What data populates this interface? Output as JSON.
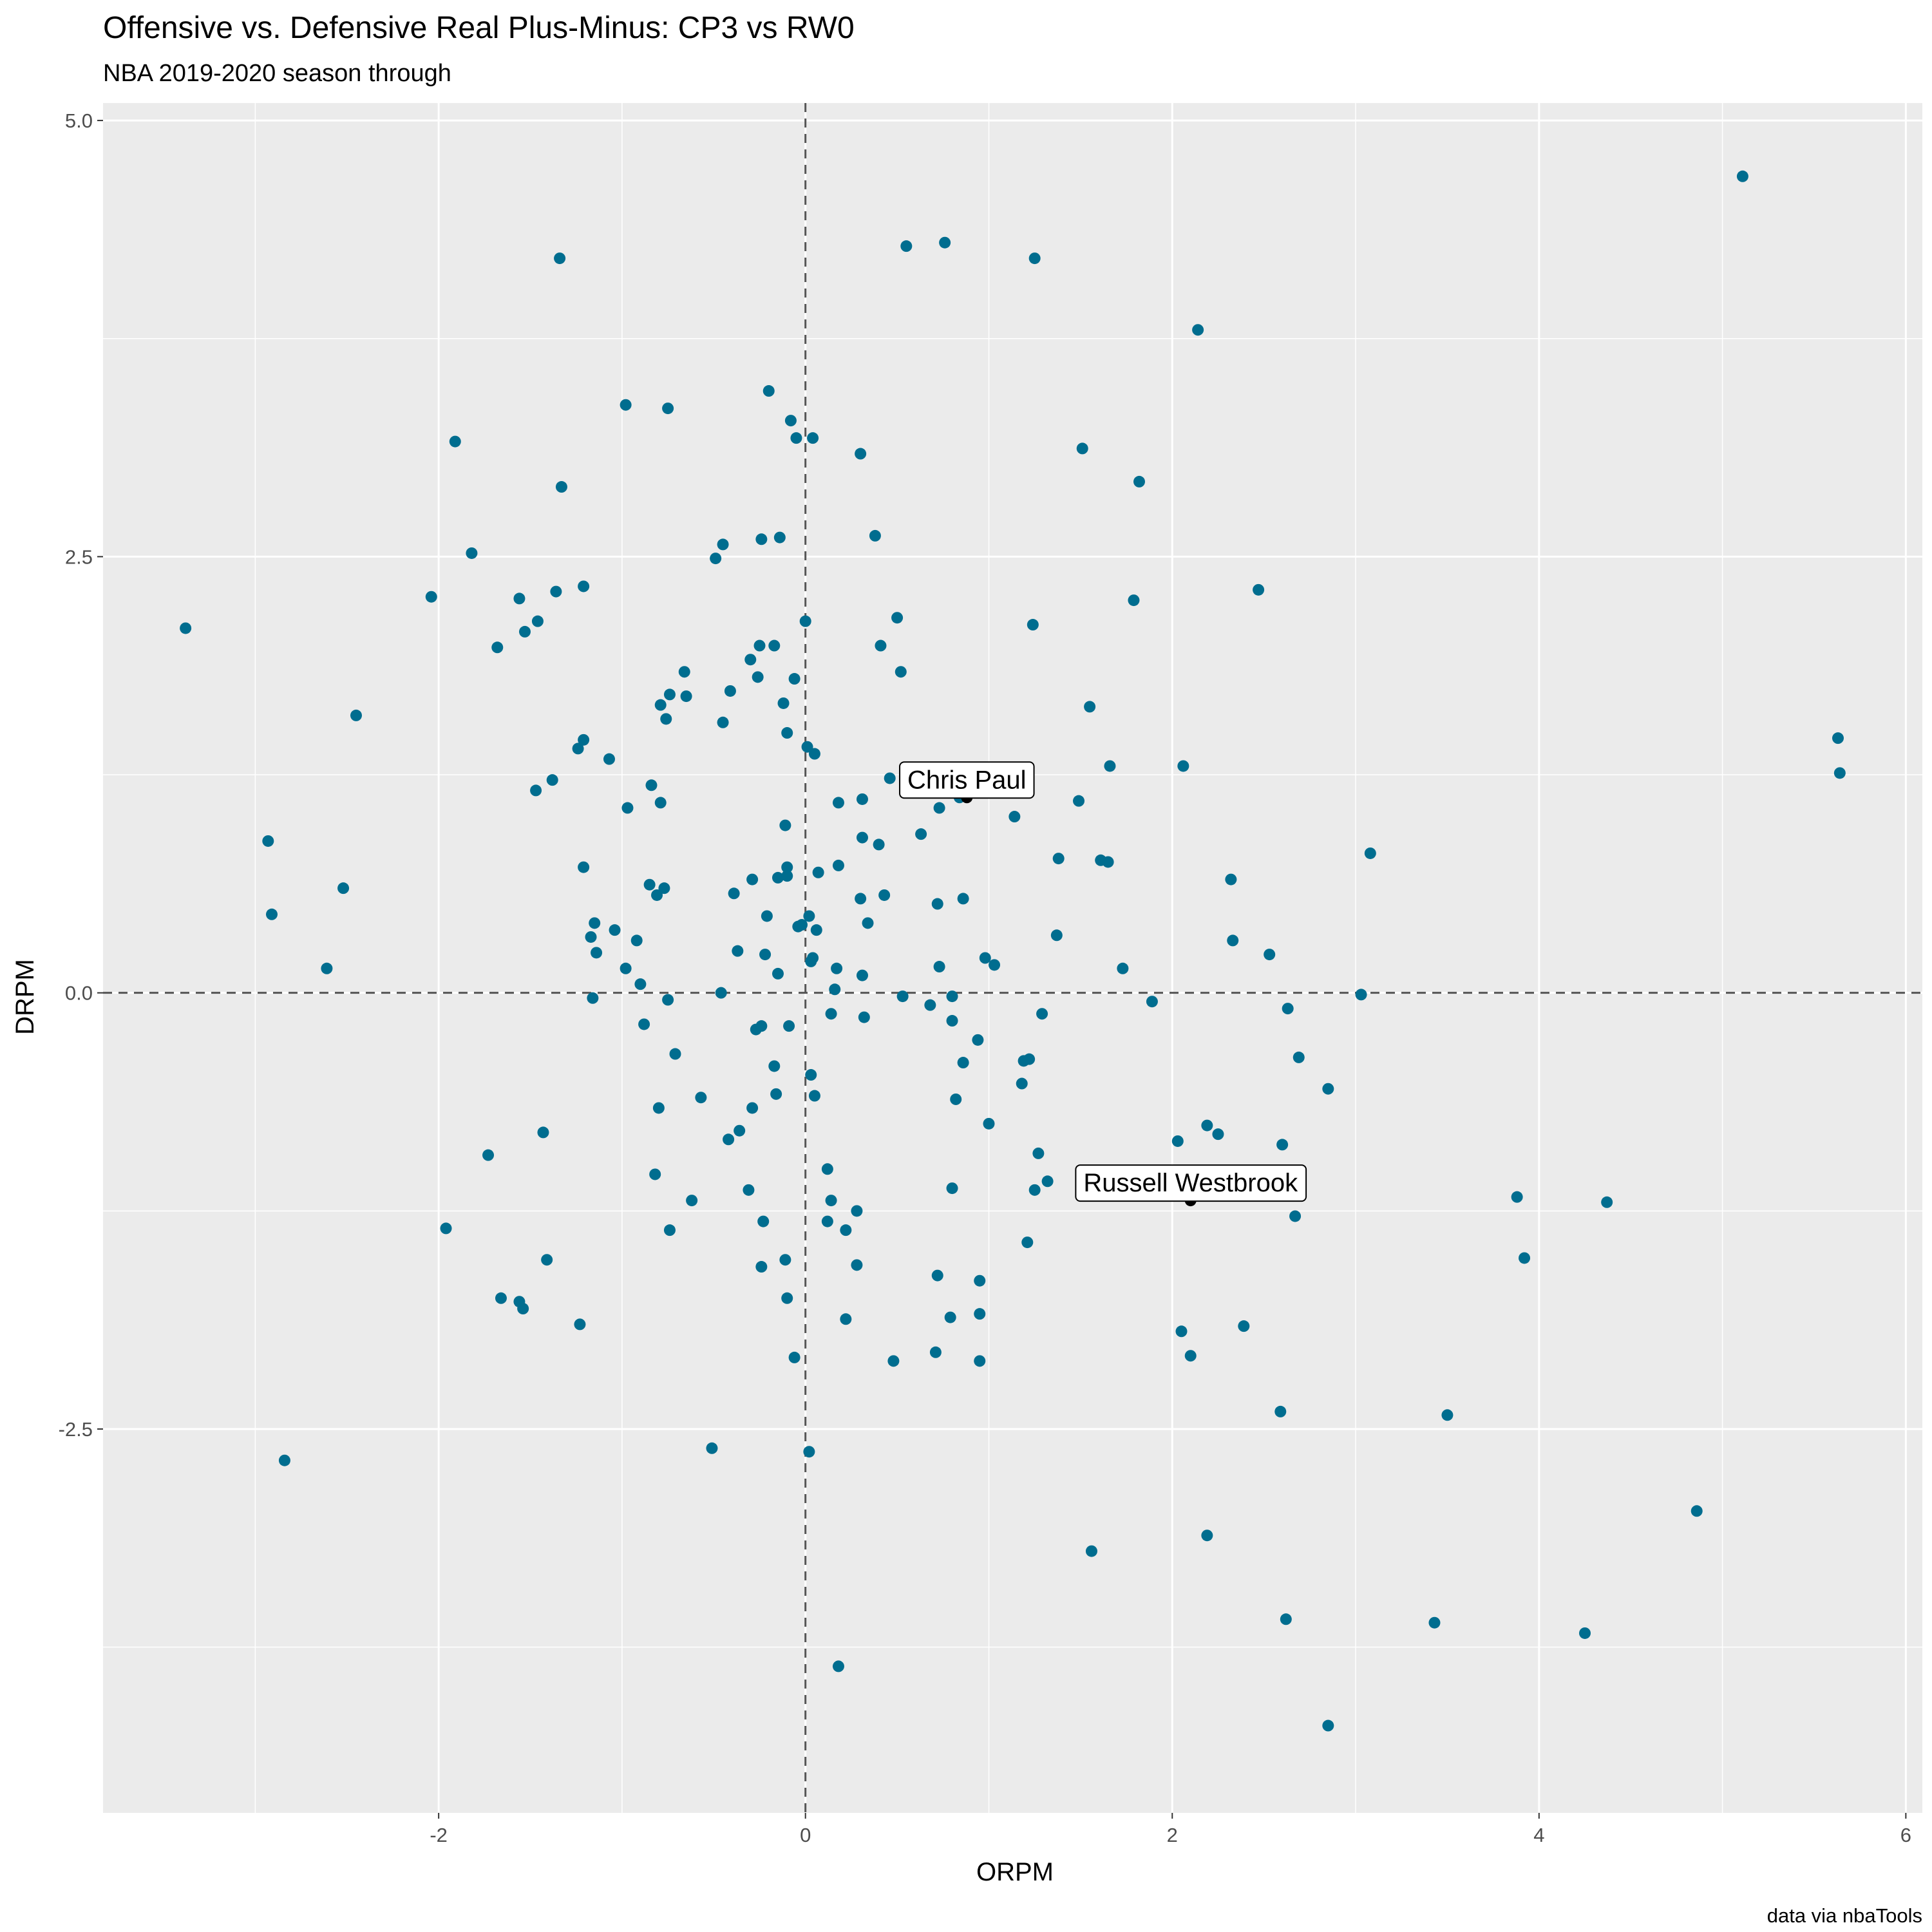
{
  "title": "Offensive vs. Defensive Real Plus-Minus: CP3 vs RW0",
  "subtitle": "NBA 2019-2020 season through",
  "caption": "data via nbaTools",
  "chart_data": {
    "type": "scatter",
    "title": "Offensive vs. Defensive Real Plus-Minus: CP3 vs RW0",
    "subtitle": "NBA 2019-2020 season through",
    "xlabel": "ORPM",
    "ylabel": "DRPM",
    "xlim": [
      -3.83,
      6.09
    ],
    "ylim": [
      -4.7,
      5.1
    ],
    "xticks": [
      -2,
      0,
      2,
      4,
      6
    ],
    "yticks": [
      -2.5,
      0.0,
      2.5,
      5.0
    ],
    "xtick_labels": [
      "-2",
      "0",
      "2",
      "4",
      "6"
    ],
    "ytick_labels": [
      "-2.5",
      "0.0",
      "2.5",
      "5.0"
    ],
    "grid": true,
    "reference_lines": [
      {
        "axis": "x",
        "value": 0,
        "style": "dashed"
      },
      {
        "axis": "y",
        "value": 0,
        "style": "dashed"
      }
    ],
    "colors": {
      "points": "#006d8f",
      "highlight": "#000000",
      "panel": "#ebebeb",
      "grid": "#ffffff",
      "refline": "#555555"
    },
    "points": [
      [
        -3.38,
        2.09
      ],
      [
        -2.93,
        0.87
      ],
      [
        -2.91,
        0.45
      ],
      [
        -2.84,
        -2.68
      ],
      [
        -2.61,
        0.14
      ],
      [
        -2.52,
        0.6
      ],
      [
        -2.45,
        1.59
      ],
      [
        -2.04,
        2.27
      ],
      [
        -1.96,
        -1.35
      ],
      [
        -1.91,
        3.16
      ],
      [
        -1.82,
        2.52
      ],
      [
        -1.73,
        -0.93
      ],
      [
        -1.68,
        1.98
      ],
      [
        -1.66,
        -1.75
      ],
      [
        -1.56,
        -1.77
      ],
      [
        -1.54,
        -1.81
      ],
      [
        -1.56,
        2.26
      ],
      [
        -1.53,
        2.07
      ],
      [
        -1.47,
        1.16
      ],
      [
        -1.46,
        2.13
      ],
      [
        -1.43,
        -0.8
      ],
      [
        -1.41,
        -1.53
      ],
      [
        -1.38,
        1.22
      ],
      [
        -1.36,
        2.3
      ],
      [
        -1.34,
        4.21
      ],
      [
        -1.33,
        2.9
      ],
      [
        -1.24,
        1.4
      ],
      [
        -1.23,
        -1.9
      ],
      [
        -1.21,
        0.72
      ],
      [
        -1.21,
        1.45
      ],
      [
        -1.21,
        2.33
      ],
      [
        -1.17,
        0.32
      ],
      [
        -1.16,
        -0.03
      ],
      [
        -1.15,
        0.4
      ],
      [
        -1.14,
        0.23
      ],
      [
        -1.07,
        1.34
      ],
      [
        -1.04,
        0.36
      ],
      [
        -0.98,
        3.37
      ],
      [
        -0.98,
        0.14
      ],
      [
        -0.97,
        1.06
      ],
      [
        -0.92,
        0.3
      ],
      [
        -0.9,
        0.05
      ],
      [
        -0.88,
        -0.18
      ],
      [
        -0.85,
        0.62
      ],
      [
        -0.84,
        1.19
      ],
      [
        -0.82,
        -1.04
      ],
      [
        -0.81,
        0.56
      ],
      [
        -0.8,
        -0.66
      ],
      [
        -0.79,
        1.09
      ],
      [
        -0.79,
        1.65
      ],
      [
        -0.77,
        0.6
      ],
      [
        -0.76,
        1.57
      ],
      [
        -0.75,
        3.35
      ],
      [
        -0.75,
        -0.04
      ],
      [
        -0.74,
        1.71
      ],
      [
        -0.74,
        -1.36
      ],
      [
        -0.71,
        -0.35
      ],
      [
        -0.66,
        1.84
      ],
      [
        -0.65,
        1.7
      ],
      [
        -0.62,
        -1.19
      ],
      [
        -0.57,
        -0.6
      ],
      [
        -0.51,
        -2.61
      ],
      [
        -0.49,
        2.49
      ],
      [
        -0.46,
        0.0
      ],
      [
        -0.45,
        2.57
      ],
      [
        -0.45,
        1.55
      ],
      [
        -0.42,
        -0.84
      ],
      [
        -0.41,
        1.73
      ],
      [
        -0.39,
        0.57
      ],
      [
        -0.37,
        0.24
      ],
      [
        -0.36,
        -0.79
      ],
      [
        -0.31,
        -1.13
      ],
      [
        -0.3,
        1.91
      ],
      [
        -0.29,
        -0.66
      ],
      [
        -0.29,
        0.65
      ],
      [
        -0.27,
        -0.21
      ],
      [
        -0.26,
        1.81
      ],
      [
        -0.25,
        1.99
      ],
      [
        -0.24,
        2.6
      ],
      [
        -0.24,
        -0.19
      ],
      [
        -0.24,
        -1.57
      ],
      [
        -0.23,
        -1.31
      ],
      [
        -0.22,
        0.22
      ],
      [
        -0.21,
        0.44
      ],
      [
        -0.2,
        3.45
      ],
      [
        -0.17,
        1.99
      ],
      [
        -0.17,
        -0.42
      ],
      [
        -0.16,
        -0.58
      ],
      [
        -0.15,
        0.66
      ],
      [
        -0.15,
        0.11
      ],
      [
        -0.14,
        2.61
      ],
      [
        -0.12,
        1.66
      ],
      [
        -0.11,
        0.96
      ],
      [
        -0.11,
        -1.53
      ],
      [
        -0.1,
        1.49
      ],
      [
        -0.1,
        -1.75
      ],
      [
        -0.1,
        0.72
      ],
      [
        -0.1,
        0.67
      ],
      [
        -0.09,
        -0.19
      ],
      [
        -0.08,
        3.28
      ],
      [
        -0.06,
        1.8
      ],
      [
        -0.05,
        3.18
      ],
      [
        -0.06,
        -2.09
      ],
      [
        -0.04,
        0.38
      ],
      [
        -0.02,
        0.39
      ],
      [
        0.0,
        2.13
      ],
      [
        0.01,
        1.41
      ],
      [
        0.02,
        0.44
      ],
      [
        0.02,
        -2.63
      ],
      [
        0.03,
        0.18
      ],
      [
        0.03,
        -0.47
      ],
      [
        0.04,
        0.2
      ],
      [
        0.04,
        3.18
      ],
      [
        0.05,
        -0.59
      ],
      [
        0.05,
        1.37
      ],
      [
        0.06,
        0.36
      ],
      [
        0.07,
        0.69
      ],
      [
        0.12,
        -1.01
      ],
      [
        0.12,
        -1.31
      ],
      [
        0.14,
        -1.19
      ],
      [
        0.14,
        -0.12
      ],
      [
        0.16,
        0.02
      ],
      [
        0.17,
        0.14
      ],
      [
        0.18,
        1.09
      ],
      [
        0.18,
        0.73
      ],
      [
        0.18,
        -3.86
      ],
      [
        0.22,
        -1.87
      ],
      [
        0.22,
        -1.36
      ],
      [
        0.28,
        -1.25
      ],
      [
        0.28,
        -1.56
      ],
      [
        0.3,
        3.09
      ],
      [
        0.3,
        0.54
      ],
      [
        0.31,
        0.89
      ],
      [
        0.31,
        1.11
      ],
      [
        0.31,
        0.1
      ],
      [
        0.32,
        -0.14
      ],
      [
        0.34,
        0.4
      ],
      [
        0.38,
        2.62
      ],
      [
        0.4,
        0.85
      ],
      [
        0.41,
        1.99
      ],
      [
        0.43,
        0.56
      ],
      [
        0.46,
        1.23
      ],
      [
        0.48,
        -2.11
      ],
      [
        0.5,
        2.15
      ],
      [
        0.52,
        1.84
      ],
      [
        0.53,
        -0.02
      ],
      [
        0.55,
        4.28
      ],
      [
        0.63,
        0.91
      ],
      [
        0.68,
        -0.07
      ],
      [
        0.71,
        -2.06
      ],
      [
        0.72,
        -1.62
      ],
      [
        0.72,
        0.51
      ],
      [
        0.73,
        1.06
      ],
      [
        0.73,
        0.15
      ],
      [
        0.76,
        4.3
      ],
      [
        0.79,
        -1.86
      ],
      [
        0.8,
        -0.02
      ],
      [
        0.8,
        -0.16
      ],
      [
        0.8,
        -1.12
      ],
      [
        0.82,
        -0.61
      ],
      [
        0.84,
        1.12
      ],
      [
        0.86,
        -0.4
      ],
      [
        0.86,
        0.54
      ],
      [
        0.94,
        -0.27
      ],
      [
        0.95,
        -1.84
      ],
      [
        0.95,
        -1.65
      ],
      [
        0.95,
        -2.11
      ],
      [
        0.98,
        0.2
      ],
      [
        1.0,
        -0.75
      ],
      [
        1.03,
        0.16
      ],
      [
        1.14,
        1.01
      ],
      [
        1.18,
        -0.52
      ],
      [
        1.19,
        -0.39
      ],
      [
        1.21,
        -1.43
      ],
      [
        1.22,
        -0.38
      ],
      [
        1.24,
        2.11
      ],
      [
        1.25,
        -1.13
      ],
      [
        1.25,
        4.21
      ],
      [
        1.27,
        -0.92
      ],
      [
        1.29,
        -0.12
      ],
      [
        1.32,
        -1.08
      ],
      [
        1.37,
        0.33
      ],
      [
        1.38,
        0.77
      ],
      [
        1.49,
        1.1
      ],
      [
        1.51,
        3.12
      ],
      [
        1.55,
        1.64
      ],
      [
        1.56,
        -3.2
      ],
      [
        1.61,
        0.76
      ],
      [
        1.65,
        0.75
      ],
      [
        1.66,
        1.3
      ],
      [
        1.73,
        0.14
      ],
      [
        1.79,
        2.25
      ],
      [
        1.82,
        2.93
      ],
      [
        1.89,
        -0.05
      ],
      [
        2.03,
        -0.85
      ],
      [
        2.05,
        -1.94
      ],
      [
        2.06,
        1.3
      ],
      [
        2.1,
        -2.08
      ],
      [
        2.14,
        3.8
      ],
      [
        2.19,
        -0.76
      ],
      [
        2.19,
        -3.11
      ],
      [
        2.25,
        -0.81
      ],
      [
        2.32,
        0.65
      ],
      [
        2.33,
        0.3
      ],
      [
        2.39,
        -1.91
      ],
      [
        2.47,
        2.31
      ],
      [
        2.53,
        0.22
      ],
      [
        2.59,
        -2.4
      ],
      [
        2.6,
        -0.87
      ],
      [
        2.62,
        -3.59
      ],
      [
        2.63,
        -0.09
      ],
      [
        2.67,
        -1.28
      ],
      [
        2.69,
        -0.37
      ],
      [
        2.85,
        -0.55
      ],
      [
        2.85,
        -4.2
      ],
      [
        3.03,
        -0.01
      ],
      [
        3.08,
        0.8
      ],
      [
        3.43,
        -3.61
      ],
      [
        3.5,
        -2.42
      ],
      [
        3.88,
        -1.17
      ],
      [
        3.92,
        -1.52
      ],
      [
        4.25,
        -3.67
      ],
      [
        4.37,
        -1.2
      ],
      [
        4.86,
        -2.97
      ],
      [
        5.11,
        4.68
      ],
      [
        5.63,
        1.46
      ],
      [
        5.64,
        1.26
      ]
    ],
    "highlighted": [
      {
        "name": "Chris Paul",
        "x": 0.88,
        "y": 1.12
      },
      {
        "name": "Russell Westbrook",
        "x": 2.1,
        "y": -1.19
      }
    ]
  }
}
